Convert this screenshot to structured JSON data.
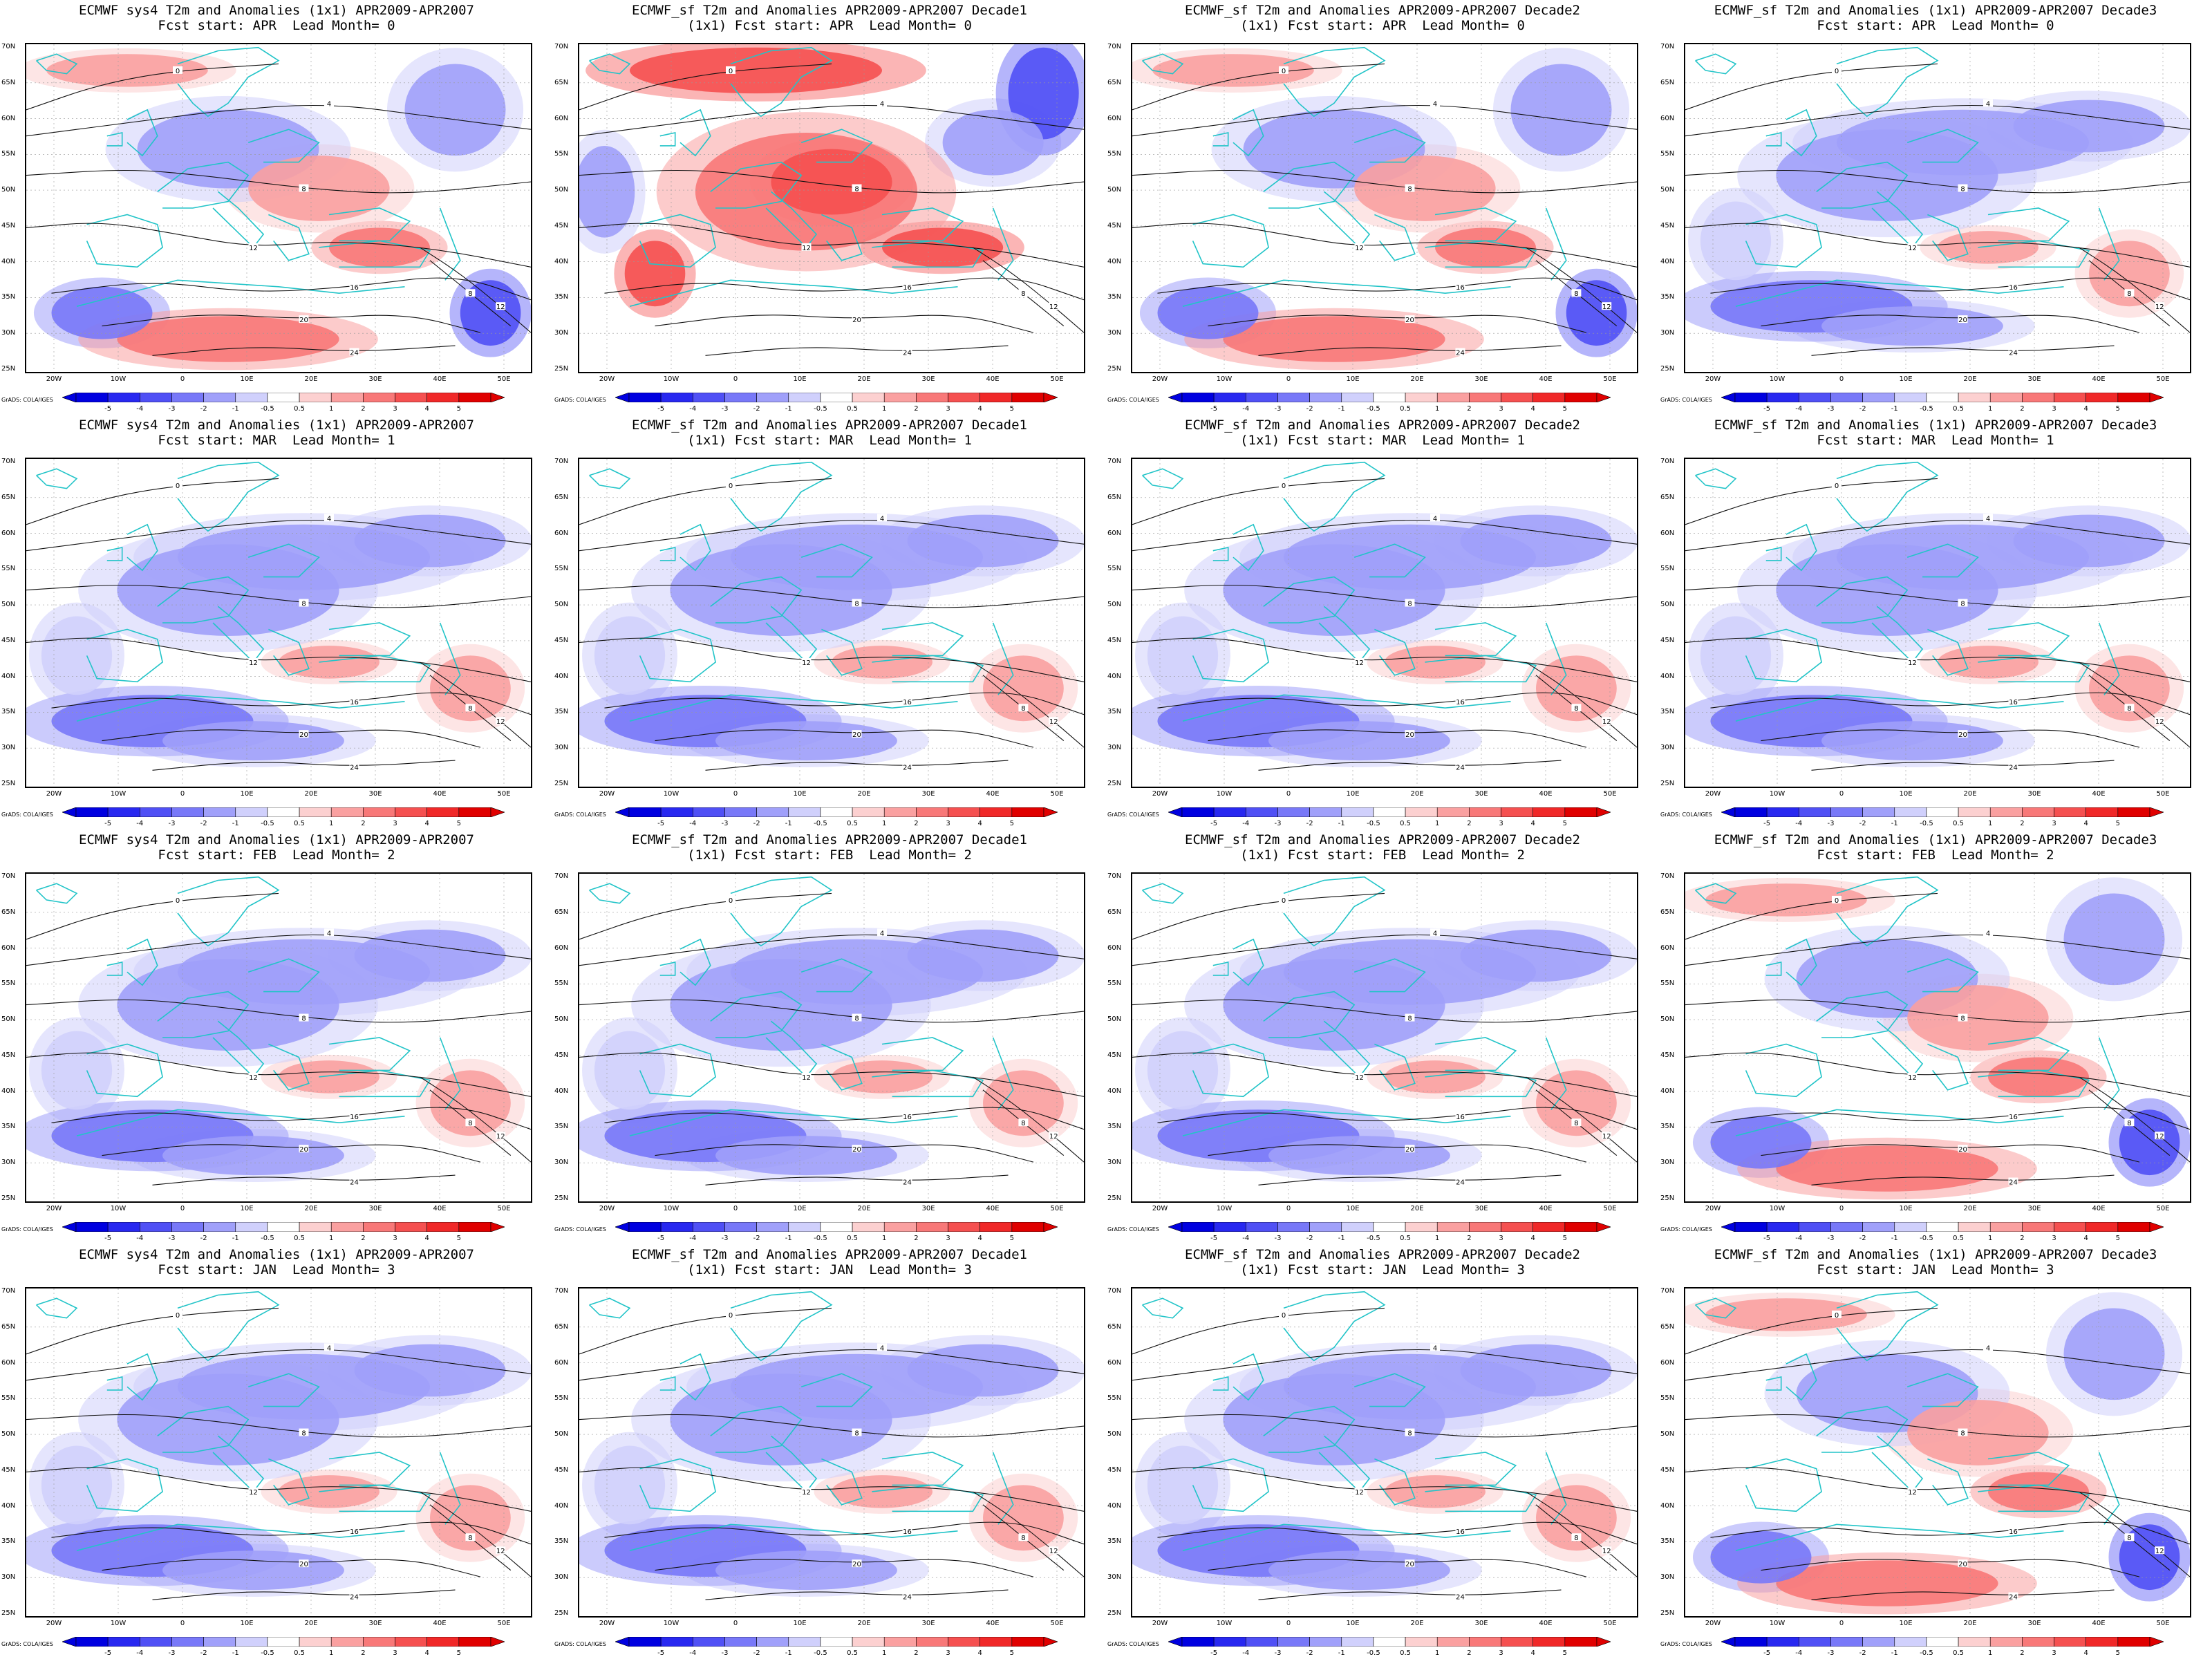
{
  "credit": "GrADS: COLA/IGES",
  "colorbar": {
    "labels": [
      "-5",
      "-4",
      "-3",
      "-2",
      "-1",
      "-0.5",
      "0.5",
      "1",
      "2",
      "3",
      "4",
      "5"
    ],
    "colors": [
      "#0000e0",
      "#2828f0",
      "#5050f5",
      "#7878f8",
      "#a0a0fa",
      "#d0d0fc",
      "#ffffff",
      "#fcd0d0",
      "#faa0a0",
      "#f87878",
      "#f55050",
      "#f02828",
      "#e00000"
    ]
  },
  "lat_labels": [
    "70N",
    "65N",
    "60N",
    "55N",
    "50N",
    "45N",
    "40N",
    "35N",
    "30N",
    "25N"
  ],
  "lon_labels": [
    "20W",
    "10W",
    "0",
    "10E",
    "20E",
    "30E",
    "40E",
    "50E"
  ],
  "panels": [
    {
      "t1": "ECMWF sys4 T2m and Anomalies (1x1) APR2009-APR2007",
      "t2": "Fcst start: APR  Lead Month= 0",
      "t3": "",
      "tone": "mixed"
    },
    {
      "t1": "ECMWF_sf T2m and Anomalies APR2009-APR2007 Decade1",
      "t2": "(1x1) Fcst start: APR  Lead Month= 0",
      "t3": "",
      "tone": "warm"
    },
    {
      "t1": "ECMWF_sf T2m and Anomalies APR2009-APR2007 Decade2",
      "t2": "(1x1) Fcst start: APR  Lead Month= 0",
      "t3": "",
      "tone": "mixed"
    },
    {
      "t1": "ECMWF_sf T2m and Anomalies (1x1) APR2009-APR2007 Decade3",
      "t2": "Fcst start: APR  Lead Month= 0",
      "t3": "",
      "tone": "cool"
    },
    {
      "t1": "ECMWF sys4 T2m and Anomalies (1x1) APR2009-APR2007",
      "t2": "Fcst start: MAR  Lead Month= 1",
      "t3": "",
      "tone": "cool"
    },
    {
      "t1": "ECMWF_sf T2m and Anomalies APR2009-APR2007 Decade1",
      "t2": "(1x1) Fcst start: MAR  Lead Month= 1",
      "t3": "",
      "tone": "cool"
    },
    {
      "t1": "ECMWF_sf T2m and Anomalies APR2009-APR2007 Decade2",
      "t2": "(1x1) Fcst start: MAR  Lead Month= 1",
      "t3": "",
      "tone": "cool"
    },
    {
      "t1": "ECMWF_sf T2m and Anomalies (1x1) APR2009-APR2007 Decade3",
      "t2": "Fcst start: MAR  Lead Month= 1",
      "t3": "",
      "tone": "cool"
    },
    {
      "t1": "ECMWF sys4 T2m and Anomalies (1x1) APR2009-APR2007",
      "t2": "Fcst start: FEB  Lead Month= 2",
      "t3": "",
      "tone": "cool"
    },
    {
      "t1": "ECMWF_sf T2m and Anomalies APR2009-APR2007 Decade1",
      "t2": "(1x1) Fcst start: FEB  Lead Month= 2",
      "t3": "",
      "tone": "cool"
    },
    {
      "t1": "ECMWF_sf T2m and Anomalies APR2009-APR2007 Decade2",
      "t2": "(1x1) Fcst start: FEB  Lead Month= 2",
      "t3": "",
      "tone": "cool"
    },
    {
      "t1": "ECMWF_sf T2m and Anomalies (1x1) APR2009-APR2007 Decade3",
      "t2": "Fcst start: FEB  Lead Month= 2",
      "t3": "",
      "tone": "mixed"
    },
    {
      "t1": "ECMWF sys4 T2m and Anomalies (1x1) APR2009-APR2007",
      "t2": "Fcst start: JAN  Lead Month= 3",
      "t3": "",
      "tone": "cool"
    },
    {
      "t1": "ECMWF_sf T2m and Anomalies APR2009-APR2007 Decade1",
      "t2": "(1x1) Fcst start: JAN  Lead Month= 3",
      "t3": "",
      "tone": "cool"
    },
    {
      "t1": "ECMWF_sf T2m and Anomalies APR2009-APR2007 Decade2",
      "t2": "(1x1) Fcst start: JAN  Lead Month= 3",
      "t3": "",
      "tone": "cool"
    },
    {
      "t1": "ECMWF_sf T2m and Anomalies (1x1) APR2009-APR2007 Decade3",
      "t2": "Fcst start: JAN  Lead Month= 3",
      "t3": "",
      "tone": "mixed"
    }
  ]
}
